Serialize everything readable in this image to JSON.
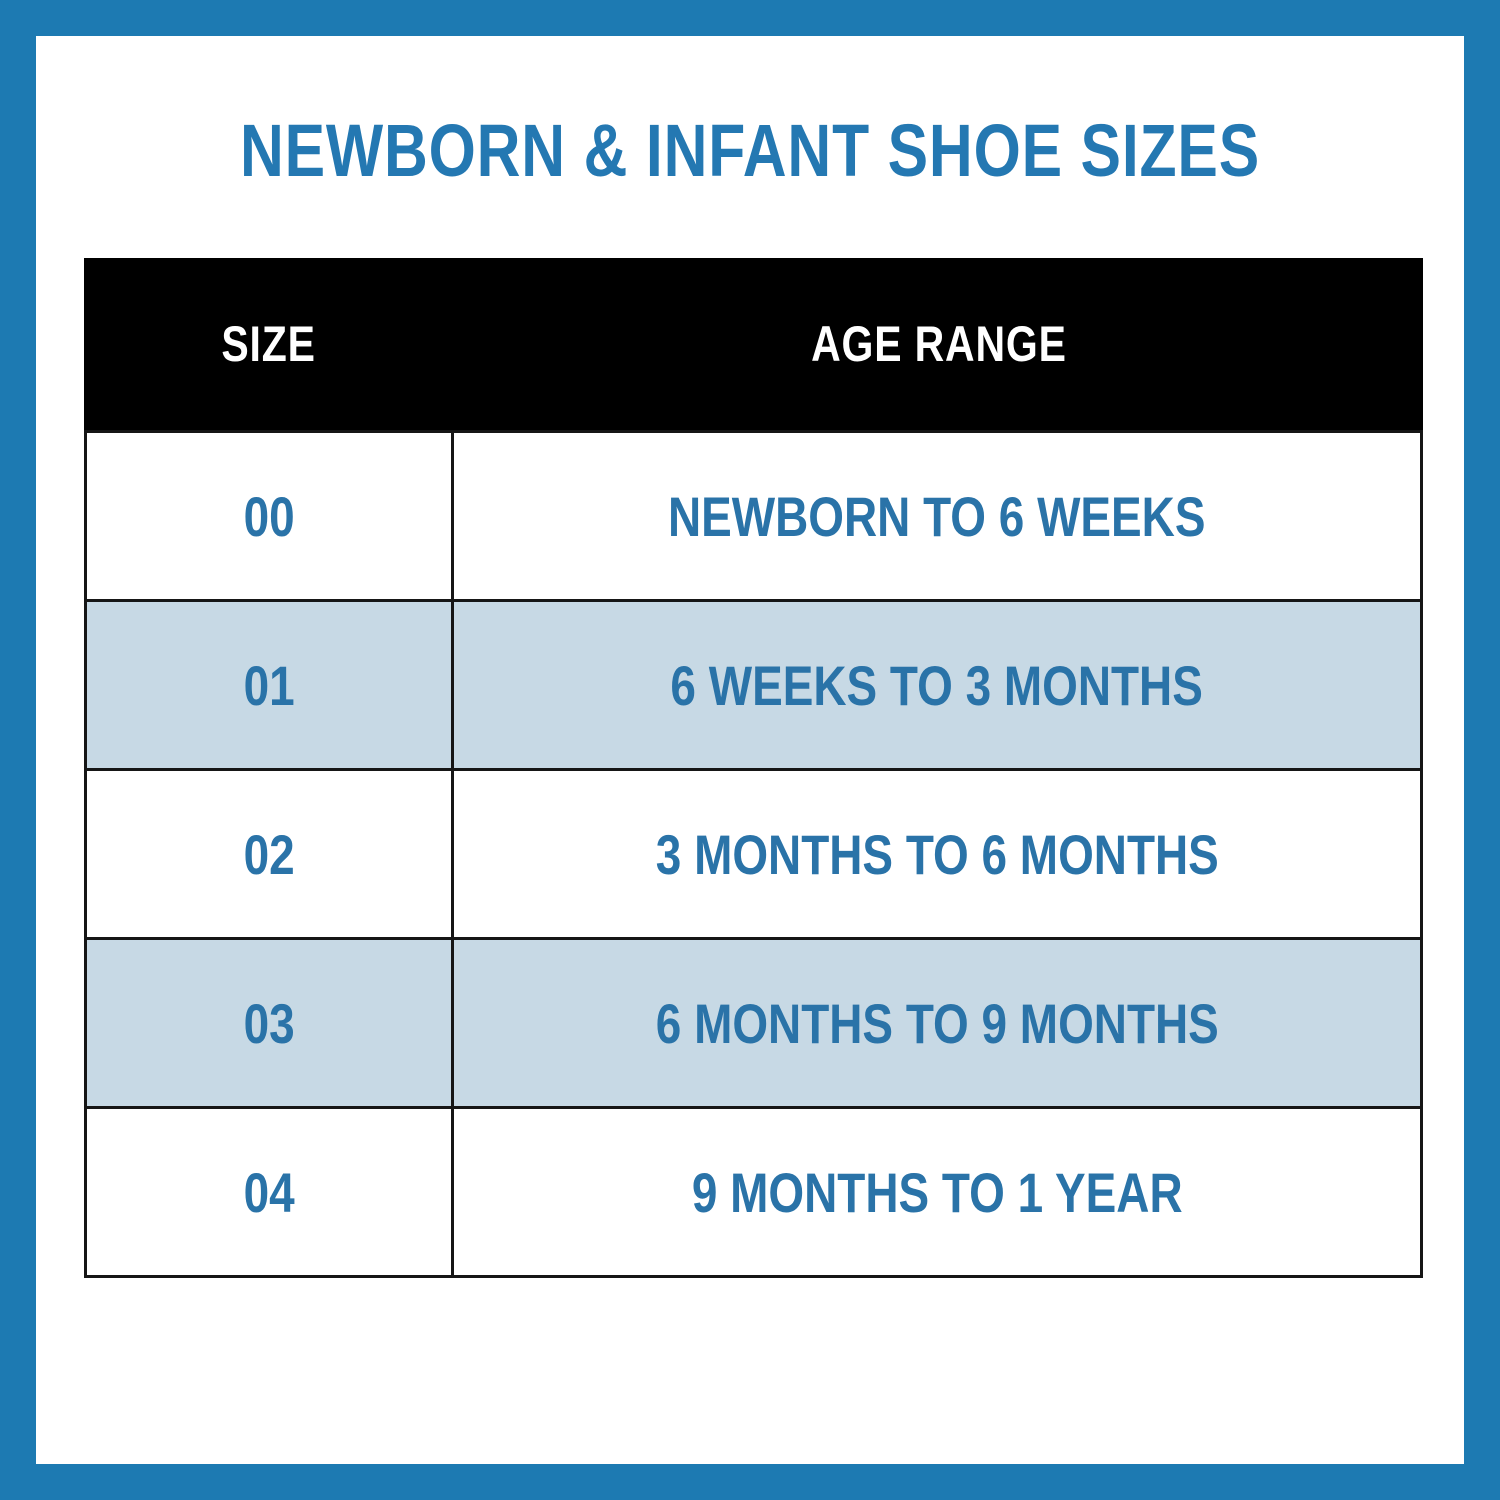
{
  "page": {
    "background_color": "#ffffff",
    "frame_color": "#1d7ab2"
  },
  "title": {
    "text": "NEWBORN & INFANT SHOE SIZES",
    "color": "#2478b2"
  },
  "table": {
    "columns": [
      {
        "key": "size",
        "label": "SIZE"
      },
      {
        "key": "age_range",
        "label": "AGE RANGE"
      }
    ],
    "header_bg": "#000000",
    "header_text_color": "#ffffff",
    "row_shade_color": "#c7d9e5",
    "cell_text_color": "#2a73a8",
    "grid_line_color": "#161616",
    "rows": [
      {
        "size": "00",
        "age_range": "NEWBORN TO 6 WEEKS",
        "shaded": false
      },
      {
        "size": "01",
        "age_range": "6 WEEKS TO 3 MONTHS",
        "shaded": true
      },
      {
        "size": "02",
        "age_range": "3 MONTHS TO 6 MONTHS",
        "shaded": false
      },
      {
        "size": "03",
        "age_range": "6 MONTHS TO 9 MONTHS",
        "shaded": true
      },
      {
        "size": "04",
        "age_range": "9 MONTHS TO 1 YEAR",
        "shaded": false
      }
    ]
  }
}
